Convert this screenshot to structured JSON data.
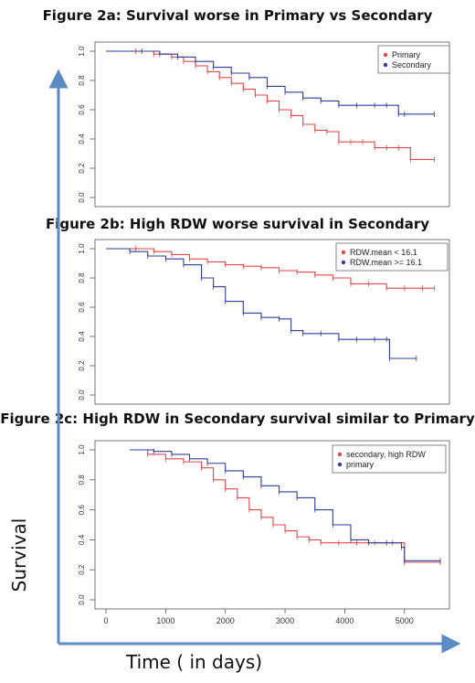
{
  "ylabel": "Survival",
  "xlabel": "Time ( in days)",
  "chart_data": [
    {
      "type": "line",
      "title": "Figure 2a: Survival worse in Primary vs Secondary",
      "ylim": [
        0,
        1
      ],
      "xlim": [
        0,
        5600
      ],
      "yticks": [
        "0.0",
        "0.2",
        "0.4",
        "0.6",
        "0.8",
        "1.0"
      ],
      "legend": "top-right",
      "series": [
        {
          "name": "Primary",
          "color": "#e0474c",
          "x": [
            0,
            500,
            800,
            1100,
            1300,
            1500,
            1700,
            1900,
            2100,
            2300,
            2500,
            2700,
            2900,
            3100,
            3300,
            3500,
            3700,
            3900,
            4100,
            4300,
            4500,
            4700,
            4900,
            5100,
            5500
          ],
          "y": [
            1.0,
            1.0,
            0.98,
            0.96,
            0.93,
            0.9,
            0.86,
            0.82,
            0.78,
            0.74,
            0.7,
            0.66,
            0.6,
            0.56,
            0.5,
            0.46,
            0.45,
            0.38,
            0.38,
            0.38,
            0.34,
            0.34,
            0.34,
            0.26,
            0.26
          ]
        },
        {
          "name": "Secondary",
          "color": "#2e3f9a",
          "x": [
            0,
            600,
            900,
            1200,
            1500,
            1800,
            2100,
            2400,
            2700,
            3000,
            3300,
            3600,
            3900,
            4200,
            4500,
            4700,
            4900,
            5000,
            5500
          ],
          "y": [
            1.0,
            1.0,
            0.98,
            0.96,
            0.93,
            0.89,
            0.85,
            0.82,
            0.76,
            0.72,
            0.68,
            0.66,
            0.63,
            0.63,
            0.63,
            0.63,
            0.57,
            0.57,
            0.57
          ]
        }
      ]
    },
    {
      "type": "line",
      "title": "Figure 2b: High RDW  worse survival in Secondary",
      "ylim": [
        0,
        1
      ],
      "xlim": [
        0,
        5600
      ],
      "yticks": [
        "0.0",
        "0.2",
        "0.4",
        "0.6",
        "0.8",
        "1.0"
      ],
      "legend": "top-right",
      "series": [
        {
          "name": "RDW.mean < 16.1",
          "color": "#e0474c",
          "x": [
            0,
            500,
            800,
            1100,
            1400,
            1700,
            2000,
            2300,
            2600,
            2900,
            3200,
            3500,
            3800,
            4100,
            4400,
            4700,
            5000,
            5300,
            5500
          ],
          "y": [
            1.0,
            1.0,
            0.98,
            0.96,
            0.93,
            0.91,
            0.89,
            0.88,
            0.87,
            0.85,
            0.84,
            0.82,
            0.8,
            0.76,
            0.76,
            0.73,
            0.73,
            0.73,
            0.73
          ]
        },
        {
          "name": "RDW.mean >= 16.1",
          "color": "#2e3f9a",
          "x": [
            0,
            400,
            700,
            1000,
            1300,
            1600,
            1800,
            2000,
            2300,
            2600,
            2900,
            3100,
            3300,
            3600,
            3900,
            4200,
            4500,
            4700,
            4750,
            5200
          ],
          "y": [
            1.0,
            0.98,
            0.95,
            0.93,
            0.89,
            0.8,
            0.74,
            0.64,
            0.56,
            0.53,
            0.52,
            0.44,
            0.42,
            0.42,
            0.38,
            0.38,
            0.38,
            0.38,
            0.25,
            0.25
          ]
        }
      ]
    },
    {
      "type": "line",
      "title": "Figure 2c: High RDW in Secondary  survival similar  to Primary",
      "ylim": [
        0,
        1
      ],
      "xlim": [
        0,
        5600
      ],
      "xticks": [
        "0",
        "1000",
        "2000",
        "3000",
        "4000",
        "5000"
      ],
      "yticks": [
        "0.0",
        "0.2",
        "0.4",
        "0.6",
        "0.8",
        "1.0"
      ],
      "legend": "top-right",
      "series": [
        {
          "name": "secondary, high RDW",
          "color": "#e0474c",
          "x": [
            400,
            700,
            1000,
            1300,
            1600,
            1800,
            2000,
            2200,
            2400,
            2600,
            2800,
            3000,
            3200,
            3400,
            3600,
            3900,
            4200,
            4500,
            4800,
            5000,
            5600
          ],
          "y": [
            1.0,
            0.97,
            0.94,
            0.92,
            0.88,
            0.8,
            0.74,
            0.68,
            0.6,
            0.55,
            0.5,
            0.46,
            0.42,
            0.4,
            0.38,
            0.38,
            0.38,
            0.38,
            0.38,
            0.25,
            0.25
          ]
        },
        {
          "name": "primary",
          "color": "#2e3f9a",
          "x": [
            400,
            800,
            1100,
            1400,
            1700,
            2000,
            2300,
            2600,
            2900,
            3200,
            3500,
            3800,
            4100,
            4400,
            4700,
            4950,
            5000,
            5600
          ],
          "y": [
            1.0,
            0.99,
            0.97,
            0.94,
            0.91,
            0.86,
            0.82,
            0.76,
            0.72,
            0.68,
            0.6,
            0.5,
            0.4,
            0.38,
            0.38,
            0.35,
            0.26,
            0.26
          ]
        }
      ]
    }
  ]
}
